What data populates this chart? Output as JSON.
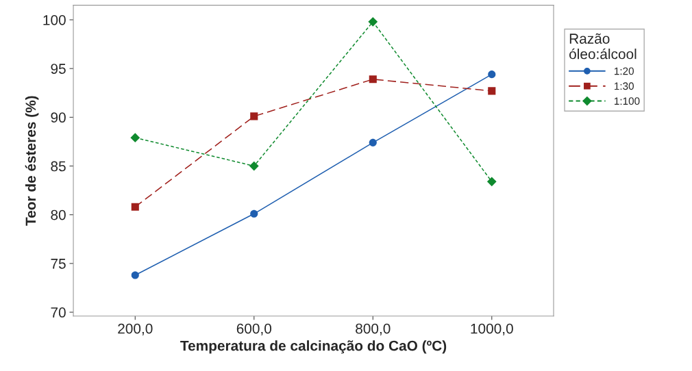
{
  "chart_data": {
    "type": "line",
    "xlabel": "Temperatura de calcinação do CaO (ºC)",
    "ylabel": "Teor de ésteres (%)",
    "legend_title": "Razão\nóleo:álcool",
    "categories": [
      "200,0",
      "600,0",
      "800,0",
      "1000,0"
    ],
    "series": [
      {
        "name": "1:20",
        "color": "#1f5fb0",
        "marker": "circle",
        "line_style": "solid",
        "values": [
          73.8,
          80.1,
          87.4,
          94.4
        ]
      },
      {
        "name": "1:30",
        "color": "#a0201c",
        "marker": "square",
        "line_style": "dashed",
        "values": [
          80.8,
          90.1,
          93.9,
          92.7
        ]
      },
      {
        "name": "1:100",
        "color": "#0f8a2e",
        "marker": "diamond",
        "line_style": "dotted",
        "values": [
          87.9,
          85.0,
          99.8,
          83.4
        ]
      }
    ],
    "ylim": [
      69.6,
      101.5
    ],
    "yticks": [
      70,
      75,
      80,
      85,
      90,
      95,
      100
    ],
    "grid": false,
    "legend": "right"
  }
}
